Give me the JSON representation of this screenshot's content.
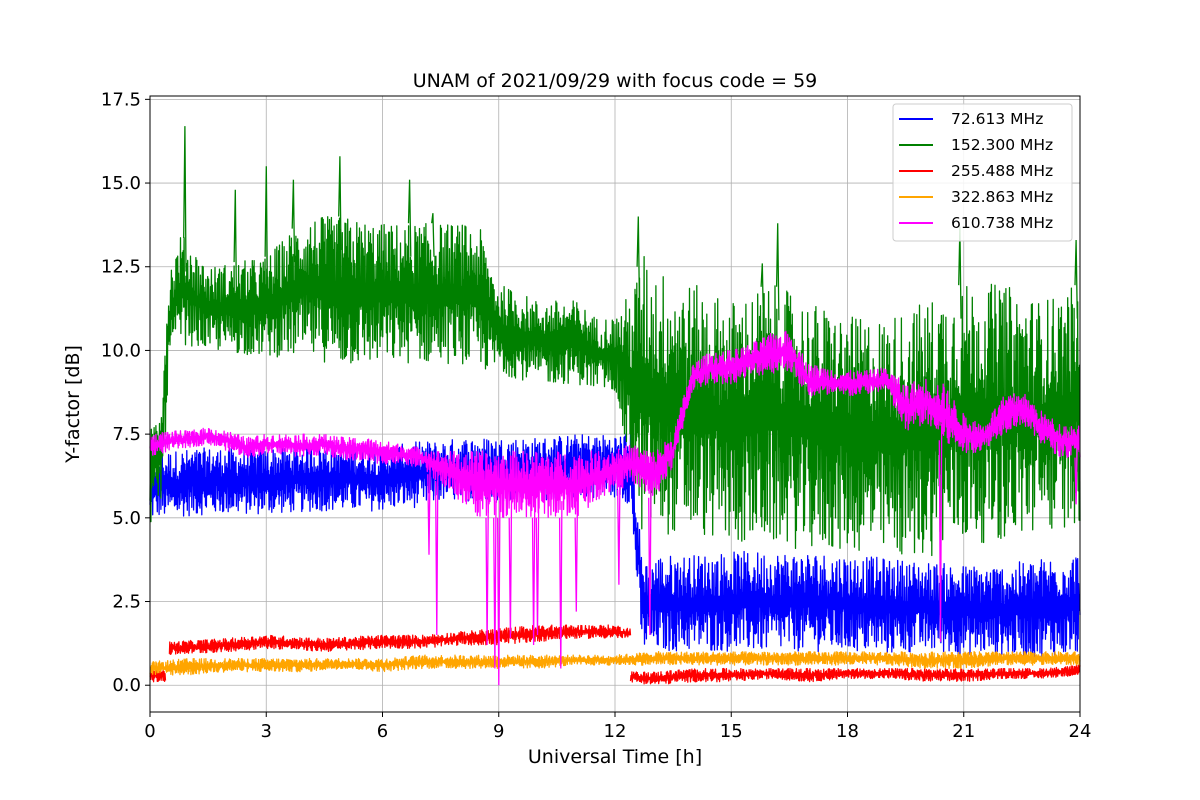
{
  "chart_data": {
    "type": "line",
    "title": "UNAM of 2021/09/29 with focus code = 59",
    "xlabel": "Universal Time [h]",
    "ylabel": "Y-factor [dB]",
    "xlim": [
      0,
      24
    ],
    "ylim": [
      -0.8,
      17.6
    ],
    "xticks": [
      0,
      3,
      6,
      9,
      12,
      15,
      18,
      21,
      24
    ],
    "xtick_labels": [
      "0",
      "3",
      "6",
      "9",
      "12",
      "15",
      "18",
      "21",
      "24"
    ],
    "yticks": [
      0,
      2.5,
      5,
      7.5,
      10,
      12.5,
      15,
      17.5
    ],
    "ytick_labels": [
      "0.0",
      "2.5",
      "5.0",
      "7.5",
      "10.0",
      "12.5",
      "15.0",
      "17.5"
    ],
    "grid": true,
    "legend_position": "top-right",
    "series": [
      {
        "name": " 72.613 MHz",
        "color": "#0000ff",
        "segments": [
          {
            "x": [
              0,
              0.1,
              0.3,
              0.5,
              1.5,
              3,
              4.5,
              6,
              6.5,
              7,
              7.5,
              8,
              9,
              10,
              11,
              12,
              12.4,
              12.7,
              13,
              14,
              15,
              16,
              17,
              18,
              19,
              20,
              21,
              22,
              23,
              24
            ],
            "lo": [
              4.8,
              5.0,
              5.0,
              5.0,
              5.1,
              5.1,
              5.2,
              5.2,
              5.3,
              5.3,
              5.5,
              5.5,
              5.5,
              5.5,
              5.6,
              5.6,
              5.4,
              1.0,
              1.0,
              1.0,
              1.0,
              1.0,
              1.0,
              1.0,
              0.9,
              1.0,
              0.9,
              0.9,
              0.8,
              0.9
            ],
            "hi": [
              6.8,
              6.9,
              7.0,
              7.0,
              7.1,
              7.1,
              7.2,
              7.1,
              7.2,
              7.3,
              7.3,
              7.4,
              7.4,
              7.4,
              7.5,
              7.5,
              7.6,
              3.9,
              3.9,
              3.9,
              4.0,
              4.0,
              4.0,
              3.9,
              3.8,
              3.7,
              3.6,
              3.6,
              3.8,
              4.0
            ]
          }
        ]
      },
      {
        "name": "152.300 MHz",
        "color": "#008000",
        "segments": [
          {
            "x": [
              0,
              0.3,
              0.5,
              0.8,
              1.5,
              3,
              4,
              5,
              6,
              7,
              8,
              8.5,
              9,
              10,
              11,
              11.5,
              12,
              12.5,
              12.7,
              13,
              14,
              15,
              16,
              17,
              18,
              19,
              20,
              21,
              22,
              23,
              24
            ],
            "lo": [
              4.8,
              5.5,
              9.5,
              10.2,
              10.0,
              9.8,
              9.8,
              9.5,
              9.6,
              9.6,
              9.6,
              9.4,
              9.3,
              9.0,
              9.0,
              8.8,
              8.8,
              5.5,
              4.5,
              4.5,
              4.5,
              4.2,
              4.2,
              4.0,
              4.0,
              3.8,
              3.8,
              4.2,
              4.3,
              4.5,
              4.8
            ],
            "hi": [
              7.5,
              9.0,
              12.5,
              13.5,
              12.5,
              12.8,
              14.0,
              14.0,
              13.8,
              13.8,
              13.8,
              13.7,
              12.0,
              11.5,
              11.5,
              11.0,
              11.0,
              12.0,
              13.0,
              12.5,
              12.0,
              11.5,
              12.0,
              11.5,
              11.0,
              11.0,
              11.5,
              12.0,
              12.0,
              11.5,
              12.0
            ]
          }
        ],
        "peaks": [
          [
            0.9,
            16.7
          ],
          [
            2.2,
            14.8
          ],
          [
            3.0,
            15.5
          ],
          [
            3.7,
            15.1
          ],
          [
            4.9,
            15.8
          ],
          [
            6.7,
            15.1
          ],
          [
            7.3,
            14.1
          ],
          [
            12.6,
            14.0
          ],
          [
            15.8,
            12.6
          ],
          [
            16.2,
            13.8
          ],
          [
            20.9,
            13.7
          ],
          [
            23.9,
            13.3
          ]
        ]
      },
      {
        "name": "255.488 MHz",
        "color": "#ff0000",
        "segments": [
          {
            "x": [
              0,
              0.4
            ],
            "lo": [
              0.1,
              0.1
            ],
            "hi": [
              0.5,
              0.5
            ]
          },
          {
            "x": [
              0.5,
              2,
              3,
              4.5,
              6,
              7,
              8,
              9,
              10,
              11,
              12,
              12.4
            ],
            "lo": [
              0.9,
              1.0,
              1.1,
              1.0,
              1.1,
              1.1,
              1.2,
              1.2,
              1.3,
              1.4,
              1.4,
              1.4
            ],
            "hi": [
              1.3,
              1.4,
              1.5,
              1.4,
              1.5,
              1.5,
              1.6,
              1.7,
              1.8,
              1.8,
              1.8,
              1.7
            ]
          },
          {
            "x": [
              12.4,
              13,
              14,
              15,
              16,
              17,
              18,
              19,
              20,
              21,
              22,
              23,
              24
            ],
            "lo": [
              0.1,
              0.0,
              0.1,
              0.1,
              0.2,
              0.1,
              0.2,
              0.2,
              0.1,
              0.1,
              0.2,
              0.2,
              0.3
            ],
            "hi": [
              0.4,
              0.4,
              0.5,
              0.5,
              0.5,
              0.5,
              0.5,
              0.5,
              0.5,
              0.5,
              0.5,
              0.5,
              0.6
            ]
          }
        ]
      },
      {
        "name": "322.863 MHz",
        "color": "#ffa500",
        "segments": [
          {
            "x": [
              0,
              1,
              2,
              3,
              4,
              5,
              6,
              7,
              8,
              9,
              10,
              11,
              12,
              13,
              14,
              15,
              16,
              17,
              18,
              19,
              20,
              21,
              22,
              23,
              24
            ],
            "lo": [
              0.3,
              0.3,
              0.4,
              0.4,
              0.4,
              0.5,
              0.4,
              0.5,
              0.5,
              0.5,
              0.5,
              0.6,
              0.6,
              0.6,
              0.6,
              0.6,
              0.6,
              0.6,
              0.6,
              0.6,
              0.5,
              0.5,
              0.6,
              0.6,
              0.6
            ],
            "hi": [
              0.7,
              0.8,
              0.8,
              0.8,
              0.8,
              0.8,
              0.8,
              0.9,
              0.9,
              0.9,
              0.9,
              0.9,
              0.9,
              1.0,
              1.0,
              1.0,
              1.0,
              1.0,
              1.0,
              1.0,
              1.0,
              1.0,
              1.0,
              1.0,
              1.0
            ]
          }
        ]
      },
      {
        "name": "610.738 MHz",
        "color": "#ff00ff",
        "segments": [
          {
            "x": [
              0,
              0.5,
              1,
              1.5,
              2,
              2.5,
              3,
              3.5,
              4,
              4.5,
              5,
              5.5,
              6,
              6.5,
              7,
              7.5,
              8,
              8.5,
              9,
              9.5,
              10,
              10.5,
              11,
              11.5,
              12,
              12.5,
              13,
              13.5,
              14,
              14.5,
              15,
              15.5,
              16,
              16.5,
              17,
              17.5,
              18,
              18.5,
              19,
              19.5,
              20,
              20.5,
              21,
              21.5,
              22,
              22.5,
              23,
              23.5,
              24
            ],
            "lo": [
              6.8,
              7.0,
              7.1,
              7.2,
              7.0,
              6.8,
              6.9,
              6.9,
              6.8,
              6.9,
              6.7,
              6.7,
              6.6,
              6.6,
              6.5,
              6.0,
              5.5,
              5.0,
              5.0,
              5.0,
              5.0,
              5.0,
              5.0,
              5.5,
              5.8,
              6.0,
              5.5,
              6.5,
              8.8,
              9.0,
              9.0,
              9.2,
              9.3,
              9.4,
              8.6,
              8.6,
              8.6,
              8.7,
              8.8,
              7.5,
              7.8,
              7.2,
              6.9,
              7.0,
              7.5,
              7.8,
              7.2,
              6.8,
              6.8
            ],
            "hi": [
              7.5,
              7.6,
              7.6,
              7.7,
              7.6,
              7.4,
              7.5,
              7.5,
              7.5,
              7.5,
              7.4,
              7.4,
              7.3,
              7.2,
              7.1,
              7.0,
              7.0,
              7.0,
              7.0,
              7.0,
              7.0,
              7.0,
              7.0,
              7.0,
              7.1,
              7.2,
              7.0,
              7.5,
              9.6,
              10.0,
              10.0,
              10.2,
              10.5,
              10.6,
              9.6,
              9.5,
              9.4,
              9.4,
              9.5,
              9.0,
              9.2,
              9.0,
              8.1,
              7.8,
              8.6,
              8.8,
              8.2,
              7.8,
              7.8
            ]
          }
        ],
        "dips": [
          [
            7.2,
            3.9
          ],
          [
            7.4,
            1.5
          ],
          [
            8.7,
            1.2
          ],
          [
            8.9,
            0.5
          ],
          [
            9.0,
            0.0
          ],
          [
            9.3,
            1.4
          ],
          [
            9.9,
            1.2
          ],
          [
            10.0,
            1.5
          ],
          [
            10.6,
            0.5
          ],
          [
            11.0,
            2.2
          ],
          [
            12.1,
            3.0
          ],
          [
            12.9,
            1.5
          ],
          [
            20.4,
            1.3
          ],
          [
            23.9,
            5.4
          ]
        ]
      }
    ]
  }
}
